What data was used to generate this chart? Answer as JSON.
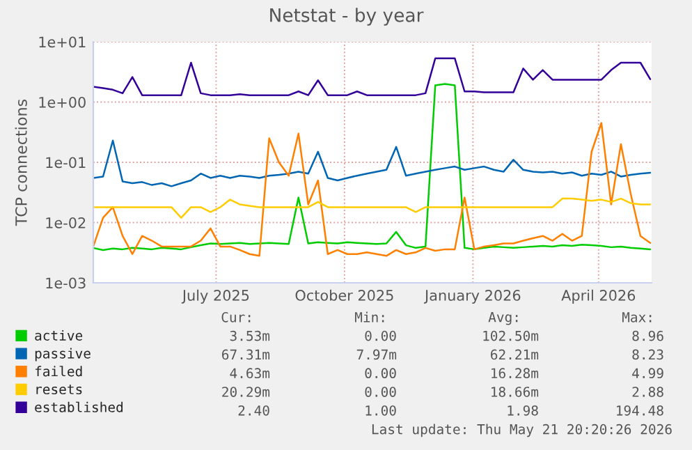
{
  "chart_data": {
    "type": "line",
    "title": "Netstat - by year",
    "ylabel": "TCP connections",
    "log": "y",
    "x": [
      "2025-04-19",
      "2025-04-26",
      "2025-05-03",
      "2025-05-10",
      "2025-05-17",
      "2025-05-24",
      "2025-05-31",
      "2025-06-07",
      "2025-06-14",
      "2025-06-21",
      "2025-06-28",
      "2025-07-05",
      "2025-07-12",
      "2025-07-19",
      "2025-07-26",
      "2025-08-02",
      "2025-08-09",
      "2025-08-16",
      "2025-08-23",
      "2025-08-30",
      "2025-09-06",
      "2025-09-13",
      "2025-09-20",
      "2025-09-27",
      "2025-10-04",
      "2025-10-11",
      "2025-10-18",
      "2025-10-25",
      "2025-11-01",
      "2025-11-08",
      "2025-11-15",
      "2025-11-22",
      "2025-11-29",
      "2025-12-06",
      "2025-12-13",
      "2025-12-20",
      "2025-12-27",
      "2026-01-03",
      "2026-01-10",
      "2026-01-17",
      "2026-01-24",
      "2026-01-31",
      "2026-02-07",
      "2026-02-14",
      "2026-02-21",
      "2026-02-28",
      "2026-03-07",
      "2026-03-14",
      "2026-03-21",
      "2026-03-28",
      "2026-04-04",
      "2026-04-11",
      "2026-04-18",
      "2026-04-25",
      "2026-05-02",
      "2026-05-09",
      "2026-05-16",
      "2026-05-23"
    ],
    "series": [
      {
        "name": "active",
        "color": "#00cc00",
        "values": [
          0.0038,
          0.0035,
          0.0037,
          0.0036,
          0.0038,
          0.0037,
          0.0036,
          0.0038,
          0.0037,
          0.0036,
          0.0039,
          0.0042,
          0.0045,
          0.0044,
          0.0045,
          0.0046,
          0.0044,
          0.0045,
          0.0046,
          0.0045,
          0.0044,
          0.026,
          0.0045,
          0.0047,
          0.0046,
          0.0045,
          0.0047,
          0.0046,
          0.0045,
          0.0044,
          0.0045,
          0.007,
          0.0042,
          0.0038,
          0.004,
          1.9,
          2.0,
          1.9,
          0.0038,
          0.0036,
          0.0038,
          0.004,
          0.0039,
          0.0038,
          0.0039,
          0.004,
          0.0041,
          0.004,
          0.0042,
          0.0041,
          0.0043,
          0.0042,
          0.0041,
          0.0039,
          0.004,
          0.0038,
          0.0037,
          0.0036
        ]
      },
      {
        "name": "passive",
        "color": "#0066b3",
        "values": [
          0.055,
          0.058,
          0.23,
          0.048,
          0.045,
          0.047,
          0.042,
          0.045,
          0.04,
          0.045,
          0.05,
          0.065,
          0.055,
          0.06,
          0.055,
          0.06,
          0.058,
          0.055,
          0.06,
          0.062,
          0.065,
          0.07,
          0.065,
          0.15,
          0.055,
          0.05,
          0.055,
          0.06,
          0.065,
          0.07,
          0.075,
          0.18,
          0.06,
          0.065,
          0.07,
          0.075,
          0.08,
          0.085,
          0.075,
          0.08,
          0.085,
          0.075,
          0.07,
          0.11,
          0.075,
          0.07,
          0.068,
          0.07,
          0.065,
          0.068,
          0.06,
          0.065,
          0.062,
          0.07,
          0.058,
          0.062,
          0.065,
          0.067
        ]
      },
      {
        "name": "failed",
        "color": "#ff8000",
        "values": [
          0.004,
          0.012,
          0.018,
          0.006,
          0.003,
          0.006,
          0.005,
          0.004,
          0.004,
          0.004,
          0.004,
          0.005,
          0.008,
          0.004,
          0.004,
          0.0035,
          0.003,
          0.0028,
          0.25,
          0.1,
          0.06,
          0.3,
          0.02,
          0.05,
          0.003,
          0.0035,
          0.003,
          0.003,
          0.0032,
          0.003,
          0.0028,
          0.0035,
          0.003,
          0.0032,
          0.0038,
          0.0034,
          0.0036,
          0.0036,
          0.026,
          0.0036,
          0.004,
          0.0042,
          0.0045,
          0.0045,
          0.005,
          0.0055,
          0.006,
          0.005,
          0.0065,
          0.005,
          0.006,
          0.15,
          0.45,
          0.02,
          0.2,
          0.03,
          0.006,
          0.0046
        ]
      },
      {
        "name": "resets",
        "color": "#ffcc00",
        "values": [
          0.018,
          0.018,
          0.018,
          0.018,
          0.018,
          0.018,
          0.018,
          0.018,
          0.018,
          0.012,
          0.018,
          0.018,
          0.015,
          0.018,
          0.024,
          0.02,
          0.019,
          0.018,
          0.018,
          0.018,
          0.018,
          0.018,
          0.018,
          0.022,
          0.018,
          0.018,
          0.018,
          0.018,
          0.018,
          0.018,
          0.018,
          0.018,
          0.018,
          0.015,
          0.018,
          0.018,
          0.018,
          0.018,
          0.018,
          0.018,
          0.018,
          0.018,
          0.018,
          0.018,
          0.018,
          0.018,
          0.018,
          0.018,
          0.025,
          0.025,
          0.024,
          0.023,
          0.024,
          0.022,
          0.025,
          0.021,
          0.02,
          0.02
        ]
      },
      {
        "name": "established",
        "color": "#330099",
        "values": [
          1.8,
          1.7,
          1.6,
          1.4,
          2.6,
          1.3,
          1.3,
          1.3,
          1.3,
          1.3,
          4.5,
          1.4,
          1.3,
          1.3,
          1.3,
          1.35,
          1.3,
          1.3,
          1.3,
          1.3,
          1.3,
          1.5,
          1.3,
          2.3,
          1.3,
          1.3,
          1.3,
          1.5,
          1.3,
          1.3,
          1.3,
          1.3,
          1.3,
          1.3,
          1.4,
          5.3,
          5.3,
          5.3,
          1.5,
          1.5,
          1.45,
          1.45,
          1.45,
          1.45,
          3.6,
          2.35,
          3.4,
          2.35,
          2.35,
          2.35,
          2.35,
          2.35,
          2.35,
          3.4,
          4.5,
          4.5,
          4.5,
          2.4
        ]
      }
    ],
    "xlim": [
      "2025-04-19",
      "2026-05-24"
    ],
    "xticks": [
      {
        "value": "2025-07-16",
        "label": "July 2025"
      },
      {
        "value": "2025-10-16",
        "label": "October 2025"
      },
      {
        "value": "2026-01-16",
        "label": "January 2026"
      },
      {
        "value": "2026-04-16",
        "label": "April 2026"
      }
    ],
    "ylim": [
      0.001,
      10
    ],
    "yticks": [
      {
        "value": 0.001,
        "label": "1e-03"
      },
      {
        "value": 0.01,
        "label": "1e-02"
      },
      {
        "value": 0.1,
        "label": "1e-01"
      },
      {
        "value": 1,
        "label": "1e+00"
      },
      {
        "value": 10,
        "label": "1e+01"
      }
    ],
    "grid": true,
    "legend": "bottom left",
    "marker": "none",
    "line_style": "solid",
    "annotations": [
      "Cur:",
      "Min:",
      "Avg:",
      "Max:",
      "3.53m",
      "0.00",
      "102.50m",
      "8.96",
      "67.31m",
      "7.97m",
      "62.21m",
      "8.23",
      "4.63m",
      "0.00",
      "16.28m",
      "4.99",
      "20.29m",
      "0.00",
      "18.66m",
      "2.88",
      "2.40",
      "1.00",
      "1.98",
      "194.48",
      "Last update: Thu May 21 20:20:26 2026"
    ]
  }
}
